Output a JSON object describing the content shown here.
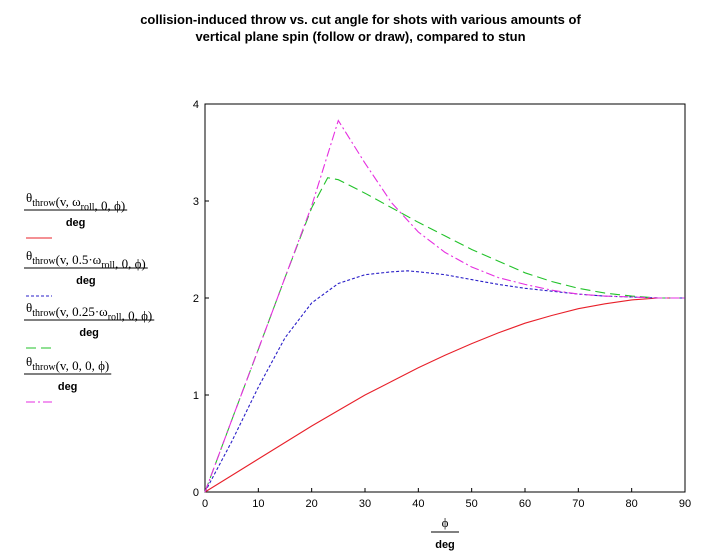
{
  "title_line1": "collision-induced throw vs. cut angle for shots with various amounts of",
  "title_line2": "vertical plane spin (follow or draw), compared to stun",
  "chart_data": {
    "type": "line",
    "title": "collision-induced throw vs. cut angle for shots with various amounts of vertical plane spin (follow or draw), compared to stun",
    "xlabel": {
      "numerator": "ϕ",
      "denominator": "deg"
    },
    "xlim": [
      0,
      90
    ],
    "ylim": [
      0,
      4
    ],
    "x_ticks": [
      "0",
      "10",
      "20",
      "30",
      "40",
      "50",
      "60",
      "70",
      "80",
      "90"
    ],
    "y_ticks": [
      "0",
      "1",
      "2",
      "3",
      "4"
    ],
    "grid": false,
    "legend_position": "left",
    "series": [
      {
        "name": "θthrow(v, ωroll, 0, ϕ) / deg",
        "legend": {
          "prefix": "θ",
          "sub": "throw",
          "args_pre": "(v, ω",
          "args_sub": "roll",
          "args_post": ", 0, ϕ)",
          "denominator": "deg"
        },
        "color": "#e8202a",
        "dash": "solid",
        "x": [
          0,
          5,
          10,
          15,
          20,
          25,
          30,
          35,
          40,
          45,
          50,
          55,
          60,
          65,
          70,
          75,
          80,
          85,
          90
        ],
        "y": [
          0,
          0.17,
          0.34,
          0.51,
          0.68,
          0.84,
          1.0,
          1.14,
          1.28,
          1.41,
          1.53,
          1.64,
          1.74,
          1.82,
          1.89,
          1.94,
          1.98,
          2.0,
          2.0
        ]
      },
      {
        "name": "θthrow(v, 0.5·ωroll, 0, ϕ) / deg",
        "legend": {
          "prefix": "θ",
          "sub": "throw",
          "args_pre": "(v, 0.5·ω",
          "args_sub": "roll",
          "args_post": ", 0, ϕ)",
          "denominator": "deg"
        },
        "color": "#2a1fc8",
        "dash": "dot",
        "x": [
          0,
          5,
          10,
          15,
          20,
          25,
          30,
          35,
          38,
          40,
          45,
          50,
          55,
          60,
          65,
          70,
          75,
          80,
          85,
          90
        ],
        "y": [
          0,
          0.52,
          1.08,
          1.59,
          1.95,
          2.15,
          2.24,
          2.27,
          2.28,
          2.27,
          2.24,
          2.19,
          2.14,
          2.1,
          2.07,
          2.04,
          2.02,
          2.01,
          2.0,
          2.0
        ]
      },
      {
        "name": "θthrow(v, 0.25·ωroll, 0, ϕ) / deg",
        "legend": {
          "prefix": "θ",
          "sub": "throw",
          "args_pre": "(v, 0.25·ω",
          "args_sub": "roll",
          "args_post": ", 0, ϕ)",
          "denominator": "deg"
        },
        "color": "#22c22a",
        "dash": "dash",
        "x": [
          0,
          5,
          10,
          15,
          20,
          23,
          25,
          30,
          35,
          40,
          45,
          50,
          55,
          60,
          65,
          70,
          75,
          80,
          85,
          90
        ],
        "y": [
          0,
          0.74,
          1.47,
          2.21,
          2.93,
          3.24,
          3.22,
          3.08,
          2.93,
          2.78,
          2.64,
          2.5,
          2.38,
          2.26,
          2.17,
          2.1,
          2.05,
          2.02,
          2.0,
          2.0
        ]
      },
      {
        "name": "θthrow(v, 0, 0, ϕ) / deg",
        "legend": {
          "prefix": "θ",
          "sub": "throw",
          "args_pre": "(v, 0, 0, ϕ)",
          "args_sub": "",
          "args_post": "",
          "denominator": "deg"
        },
        "color": "#e62ee0",
        "dash": "dashdot",
        "x": [
          0,
          5,
          10,
          15,
          20,
          25,
          30,
          35,
          40,
          45,
          50,
          55,
          60,
          65,
          70,
          75,
          80,
          85,
          90
        ],
        "y": [
          0,
          0.74,
          1.47,
          2.21,
          2.95,
          3.83,
          3.39,
          2.98,
          2.68,
          2.47,
          2.32,
          2.21,
          2.14,
          2.08,
          2.04,
          2.02,
          2.01,
          2.0,
          2.0
        ]
      }
    ]
  }
}
